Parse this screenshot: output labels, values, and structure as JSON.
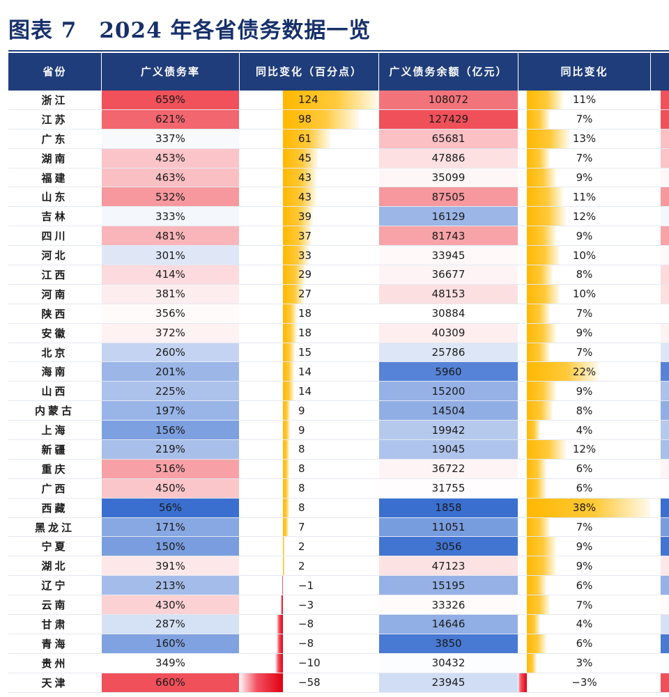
{
  "title": "图表 7　2024 年各省债务数据一览",
  "headers": [
    "省份",
    "广义债务率",
    "同比变化（百分点）",
    "广义债务余额（亿元）",
    "同比变化"
  ],
  "colors": {
    "header_bg": "#1f3d7a",
    "title": "#17306b",
    "high": "#f0505a",
    "low": "#3a6fd0",
    "bar_positive": "#ffb800",
    "bar_negative": "#e00010"
  },
  "rows": [
    {
      "province": "浙江",
      "rate": "659%",
      "rate_change": "124",
      "balance": "108072",
      "balance_yoy": "11%"
    },
    {
      "province": "江苏",
      "rate": "621%",
      "rate_change": "98",
      "balance": "127429",
      "balance_yoy": "7%"
    },
    {
      "province": "广东",
      "rate": "337%",
      "rate_change": "61",
      "balance": "65681",
      "balance_yoy": "13%"
    },
    {
      "province": "湖南",
      "rate": "453%",
      "rate_change": "45",
      "balance": "47886",
      "balance_yoy": "7%"
    },
    {
      "province": "福建",
      "rate": "463%",
      "rate_change": "43",
      "balance": "35099",
      "balance_yoy": "9%"
    },
    {
      "province": "山东",
      "rate": "532%",
      "rate_change": "43",
      "balance": "87505",
      "balance_yoy": "11%"
    },
    {
      "province": "吉林",
      "rate": "333%",
      "rate_change": "39",
      "balance": "16129",
      "balance_yoy": "12%"
    },
    {
      "province": "四川",
      "rate": "481%",
      "rate_change": "37",
      "balance": "81743",
      "balance_yoy": "9%"
    },
    {
      "province": "河北",
      "rate": "301%",
      "rate_change": "33",
      "balance": "33945",
      "balance_yoy": "10%"
    },
    {
      "province": "江西",
      "rate": "414%",
      "rate_change": "29",
      "balance": "36677",
      "balance_yoy": "8%"
    },
    {
      "province": "河南",
      "rate": "381%",
      "rate_change": "27",
      "balance": "48153",
      "balance_yoy": "10%"
    },
    {
      "province": "陕西",
      "rate": "356%",
      "rate_change": "18",
      "balance": "30884",
      "balance_yoy": "7%"
    },
    {
      "province": "安徽",
      "rate": "372%",
      "rate_change": "18",
      "balance": "40309",
      "balance_yoy": "9%"
    },
    {
      "province": "北京",
      "rate": "260%",
      "rate_change": "15",
      "balance": "25786",
      "balance_yoy": "7%"
    },
    {
      "province": "海南",
      "rate": "201%",
      "rate_change": "14",
      "balance": "5960",
      "balance_yoy": "22%"
    },
    {
      "province": "山西",
      "rate": "225%",
      "rate_change": "14",
      "balance": "15200",
      "balance_yoy": "9%"
    },
    {
      "province": "内蒙古",
      "rate": "197%",
      "rate_change": "9",
      "balance": "14504",
      "balance_yoy": "8%"
    },
    {
      "province": "上海",
      "rate": "156%",
      "rate_change": "9",
      "balance": "19942",
      "balance_yoy": "4%"
    },
    {
      "province": "新疆",
      "rate": "219%",
      "rate_change": "8",
      "balance": "19045",
      "balance_yoy": "12%"
    },
    {
      "province": "重庆",
      "rate": "516%",
      "rate_change": "8",
      "balance": "36722",
      "balance_yoy": "6%"
    },
    {
      "province": "广西",
      "rate": "450%",
      "rate_change": "8",
      "balance": "31755",
      "balance_yoy": "6%"
    },
    {
      "province": "西藏",
      "rate": "56%",
      "rate_change": "8",
      "balance": "1858",
      "balance_yoy": "38%"
    },
    {
      "province": "黑龙江",
      "rate": "171%",
      "rate_change": "7",
      "balance": "11051",
      "balance_yoy": "7%"
    },
    {
      "province": "宁夏",
      "rate": "150%",
      "rate_change": "2",
      "balance": "3056",
      "balance_yoy": "9%"
    },
    {
      "province": "湖北",
      "rate": "391%",
      "rate_change": "2",
      "balance": "47123",
      "balance_yoy": "9%"
    },
    {
      "province": "辽宁",
      "rate": "213%",
      "rate_change": "−1",
      "balance": "15195",
      "balance_yoy": "6%"
    },
    {
      "province": "云南",
      "rate": "430%",
      "rate_change": "−3",
      "balance": "33326",
      "balance_yoy": "7%"
    },
    {
      "province": "甘肃",
      "rate": "287%",
      "rate_change": "−8",
      "balance": "14646",
      "balance_yoy": "4%"
    },
    {
      "province": "青海",
      "rate": "160%",
      "rate_change": "−8",
      "balance": "3850",
      "balance_yoy": "6%"
    },
    {
      "province": "贵州",
      "rate": "349%",
      "rate_change": "−10",
      "balance": "30432",
      "balance_yoy": "3%"
    },
    {
      "province": "天津",
      "rate": "660%",
      "rate_change": "−58",
      "balance": "23945",
      "balance_yoy": "−3%"
    }
  ]
}
